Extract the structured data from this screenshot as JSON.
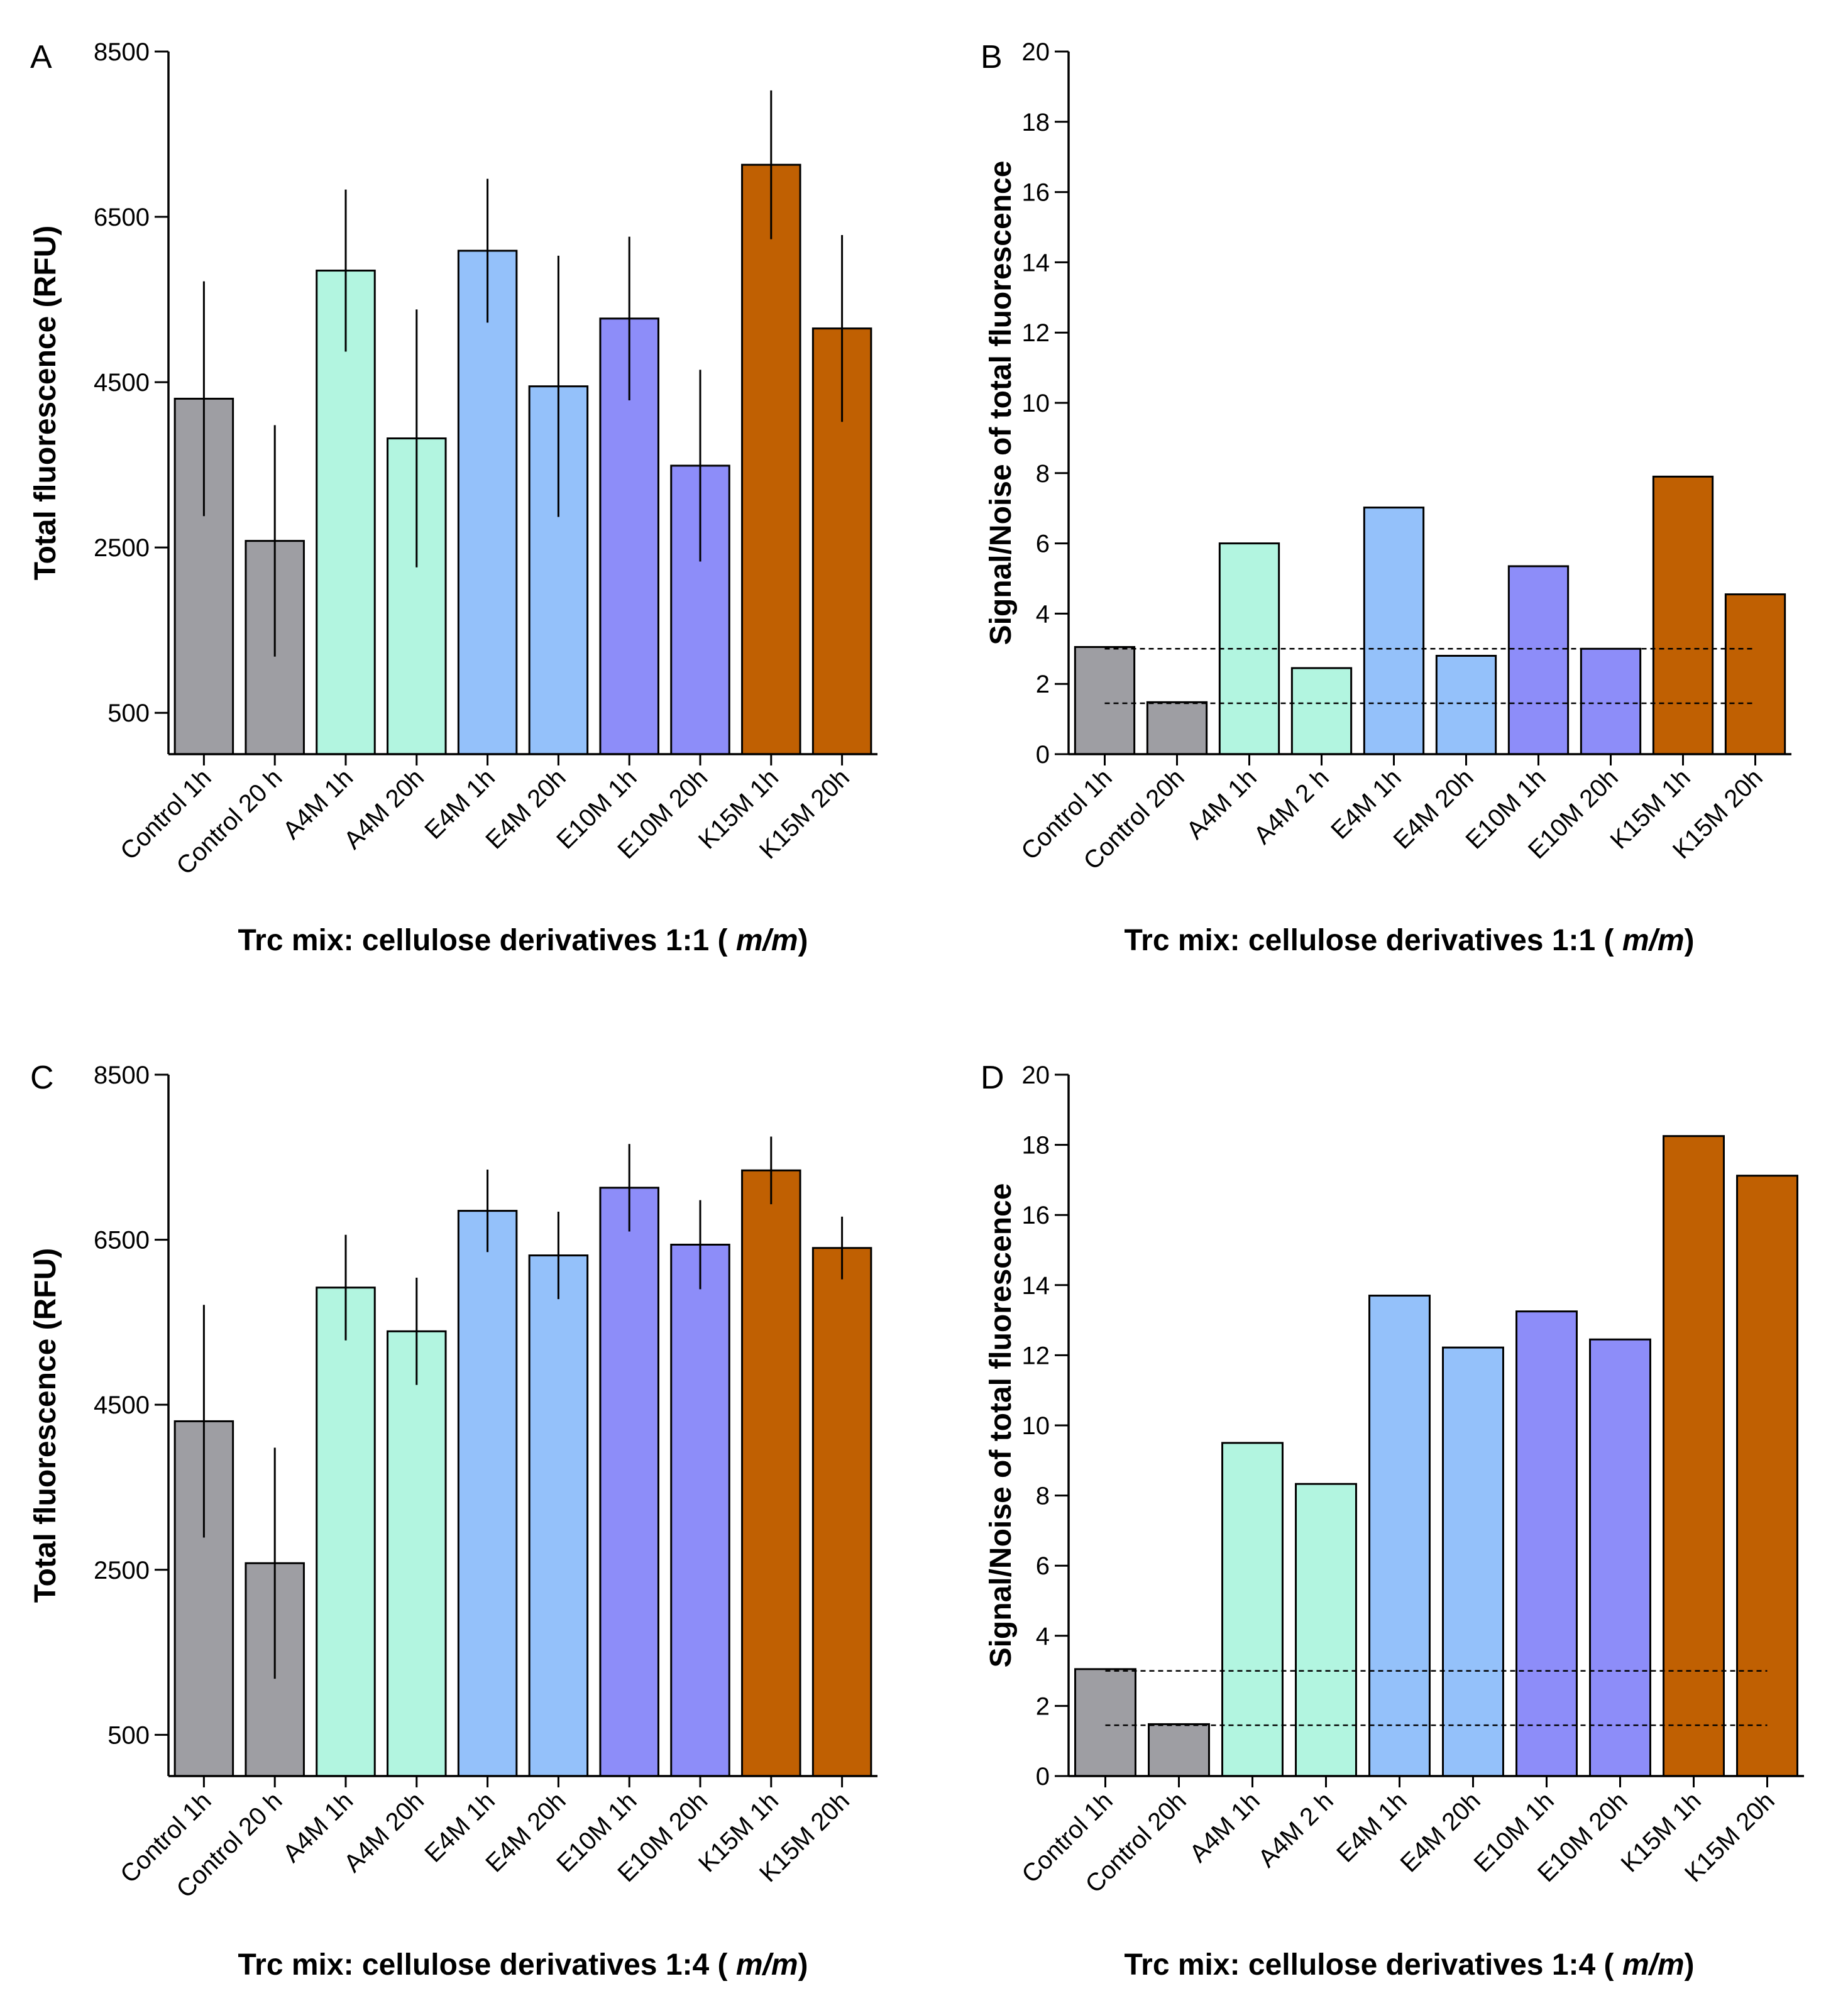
{
  "chart_data": [
    {
      "type": "bar",
      "panel": "A",
      "title": "",
      "ylabel": "Total fluorescence (RFU)",
      "xlabel_main": "Trc mix: cellulose derivatives 1:1 (",
      "xlabel_italic": "m/m",
      "xlabel_tail": ")",
      "categories": [
        "Control 1h",
        "Control 20 h",
        "A4M 1h",
        "A4M 20h",
        "E4M 1h",
        "E4M 20h",
        "E10M 1h",
        "E10M 20h",
        "K15M 1h",
        "K15M 20h"
      ],
      "values": [
        4300,
        2580,
        5850,
        3820,
        6090,
        4450,
        5270,
        3490,
        7130,
        5150
      ],
      "errors": [
        1420,
        1400,
        980,
        1560,
        870,
        1580,
        990,
        1160,
        900,
        1130
      ],
      "colors": [
        "#9e9ea3",
        "#9e9ea3",
        "#b2f5e0",
        "#b2f5e0",
        "#94c1fa",
        "#94c1fa",
        "#8d8df9",
        "#8d8df9",
        "#c06002",
        "#c06002"
      ],
      "ylim": [
        0,
        8500
      ],
      "yticks": [
        500,
        2500,
        4500,
        6500,
        8500
      ],
      "reference_lines": []
    },
    {
      "type": "bar",
      "panel": "B",
      "title": "",
      "ylabel": "Signal/Noise of total fluorescence",
      "xlabel_main": "Trc mix: cellulose derivatives 1:1 (",
      "xlabel_italic": "m/m",
      "xlabel_tail": ")",
      "categories": [
        "Control 1h",
        "Control 20h",
        "A4M 1h",
        "A4M 2 h",
        "E4M 1h",
        "E4M 20h",
        "E10M 1h",
        "E10M 20h",
        "K15M 1h",
        "K15M 20h"
      ],
      "values": [
        3.05,
        1.48,
        6.0,
        2.45,
        7.02,
        2.8,
        5.35,
        3.0,
        7.9,
        4.55
      ],
      "errors": [],
      "colors": [
        "#9e9ea3",
        "#9e9ea3",
        "#b2f5e0",
        "#b2f5e0",
        "#94c1fa",
        "#94c1fa",
        "#8d8df9",
        "#8d8df9",
        "#c06002",
        "#c06002"
      ],
      "ylim": [
        0,
        20
      ],
      "yticks": [
        0,
        2,
        4,
        6,
        8,
        10,
        12,
        14,
        16,
        18,
        20
      ],
      "reference_lines": [
        3.0,
        1.45
      ]
    },
    {
      "type": "bar",
      "panel": "C",
      "title": "",
      "ylabel": "Total fluorescence (RFU)",
      "xlabel_main": "Trc mix: cellulose derivatives 1:4 (",
      "xlabel_italic": "m/m",
      "xlabel_tail": ")",
      "categories": [
        "Control 1h",
        "Control 20 h",
        "A4M 1h",
        "A4M 20h",
        "E4M 1h",
        "E4M 20h",
        "E10M 1h",
        "E10M 20h",
        "K15M 1h",
        "K15M 20h"
      ],
      "values": [
        4300,
        2580,
        5920,
        5390,
        6850,
        6310,
        7130,
        6440,
        7340,
        6400
      ],
      "errors": [
        1410,
        1400,
        640,
        650,
        500,
        530,
        530,
        540,
        410,
        380
      ],
      "colors": [
        "#9e9ea3",
        "#9e9ea3",
        "#b2f5e0",
        "#b2f5e0",
        "#94c1fa",
        "#94c1fa",
        "#8d8df9",
        "#8d8df9",
        "#c06002",
        "#c06002"
      ],
      "ylim": [
        0,
        8500
      ],
      "yticks": [
        500,
        2500,
        4500,
        6500,
        8500
      ],
      "reference_lines": []
    },
    {
      "type": "bar",
      "panel": "D",
      "title": "",
      "ylabel": "Signal/Noise of total fluorescence",
      "xlabel_main": "Trc mix: cellulose derivatives 1:4 (",
      "xlabel_italic": "m/m",
      "xlabel_tail": ")",
      "categories": [
        "Control 1h",
        "Control 20h",
        "A4M 1h",
        "A4M 2 h",
        "E4M 1h",
        "E4M 20h",
        "E10M 1h",
        "E10M 20h",
        "K15M 1h",
        "K15M 20h"
      ],
      "values": [
        3.05,
        1.48,
        9.5,
        8.33,
        13.7,
        12.22,
        13.25,
        12.45,
        18.25,
        17.12
      ],
      "errors": [],
      "colors": [
        "#9e9ea3",
        "#9e9ea3",
        "#b2f5e0",
        "#b2f5e0",
        "#94c1fa",
        "#94c1fa",
        "#8d8df9",
        "#8d8df9",
        "#c06002",
        "#c06002"
      ],
      "ylim": [
        0,
        20
      ],
      "yticks": [
        0,
        2,
        4,
        6,
        8,
        10,
        12,
        14,
        16,
        18,
        20
      ],
      "reference_lines": [
        3.0,
        1.45
      ]
    }
  ]
}
